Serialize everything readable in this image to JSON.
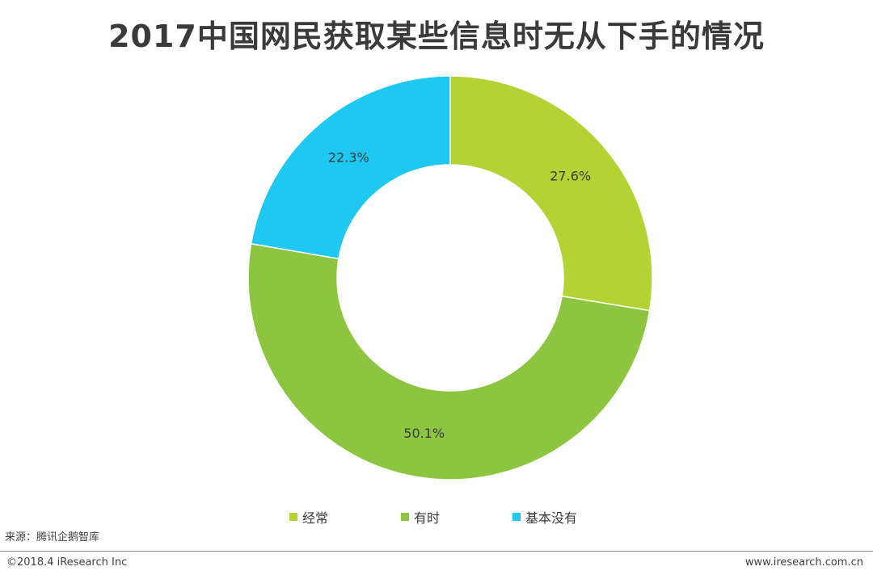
{
  "chart_data": {
    "type": "pie",
    "donut": true,
    "title": "2017中国网民获取某些信息时无从下手的情况",
    "categories": [
      "经常",
      "有时",
      "基本没有"
    ],
    "values": [
      27.6,
      50.1,
      22.3
    ],
    "labels": [
      "27.6%",
      "50.1%",
      "22.3%"
    ],
    "colors": [
      "#b3d335",
      "#8cc540",
      "#1ec8f0"
    ],
    "legend_position": "bottom"
  },
  "source": "来源：腾讯企鹅智库",
  "copyright": "©2018.4 iResearch Inc",
  "website": "www.iresearch.com.cn"
}
